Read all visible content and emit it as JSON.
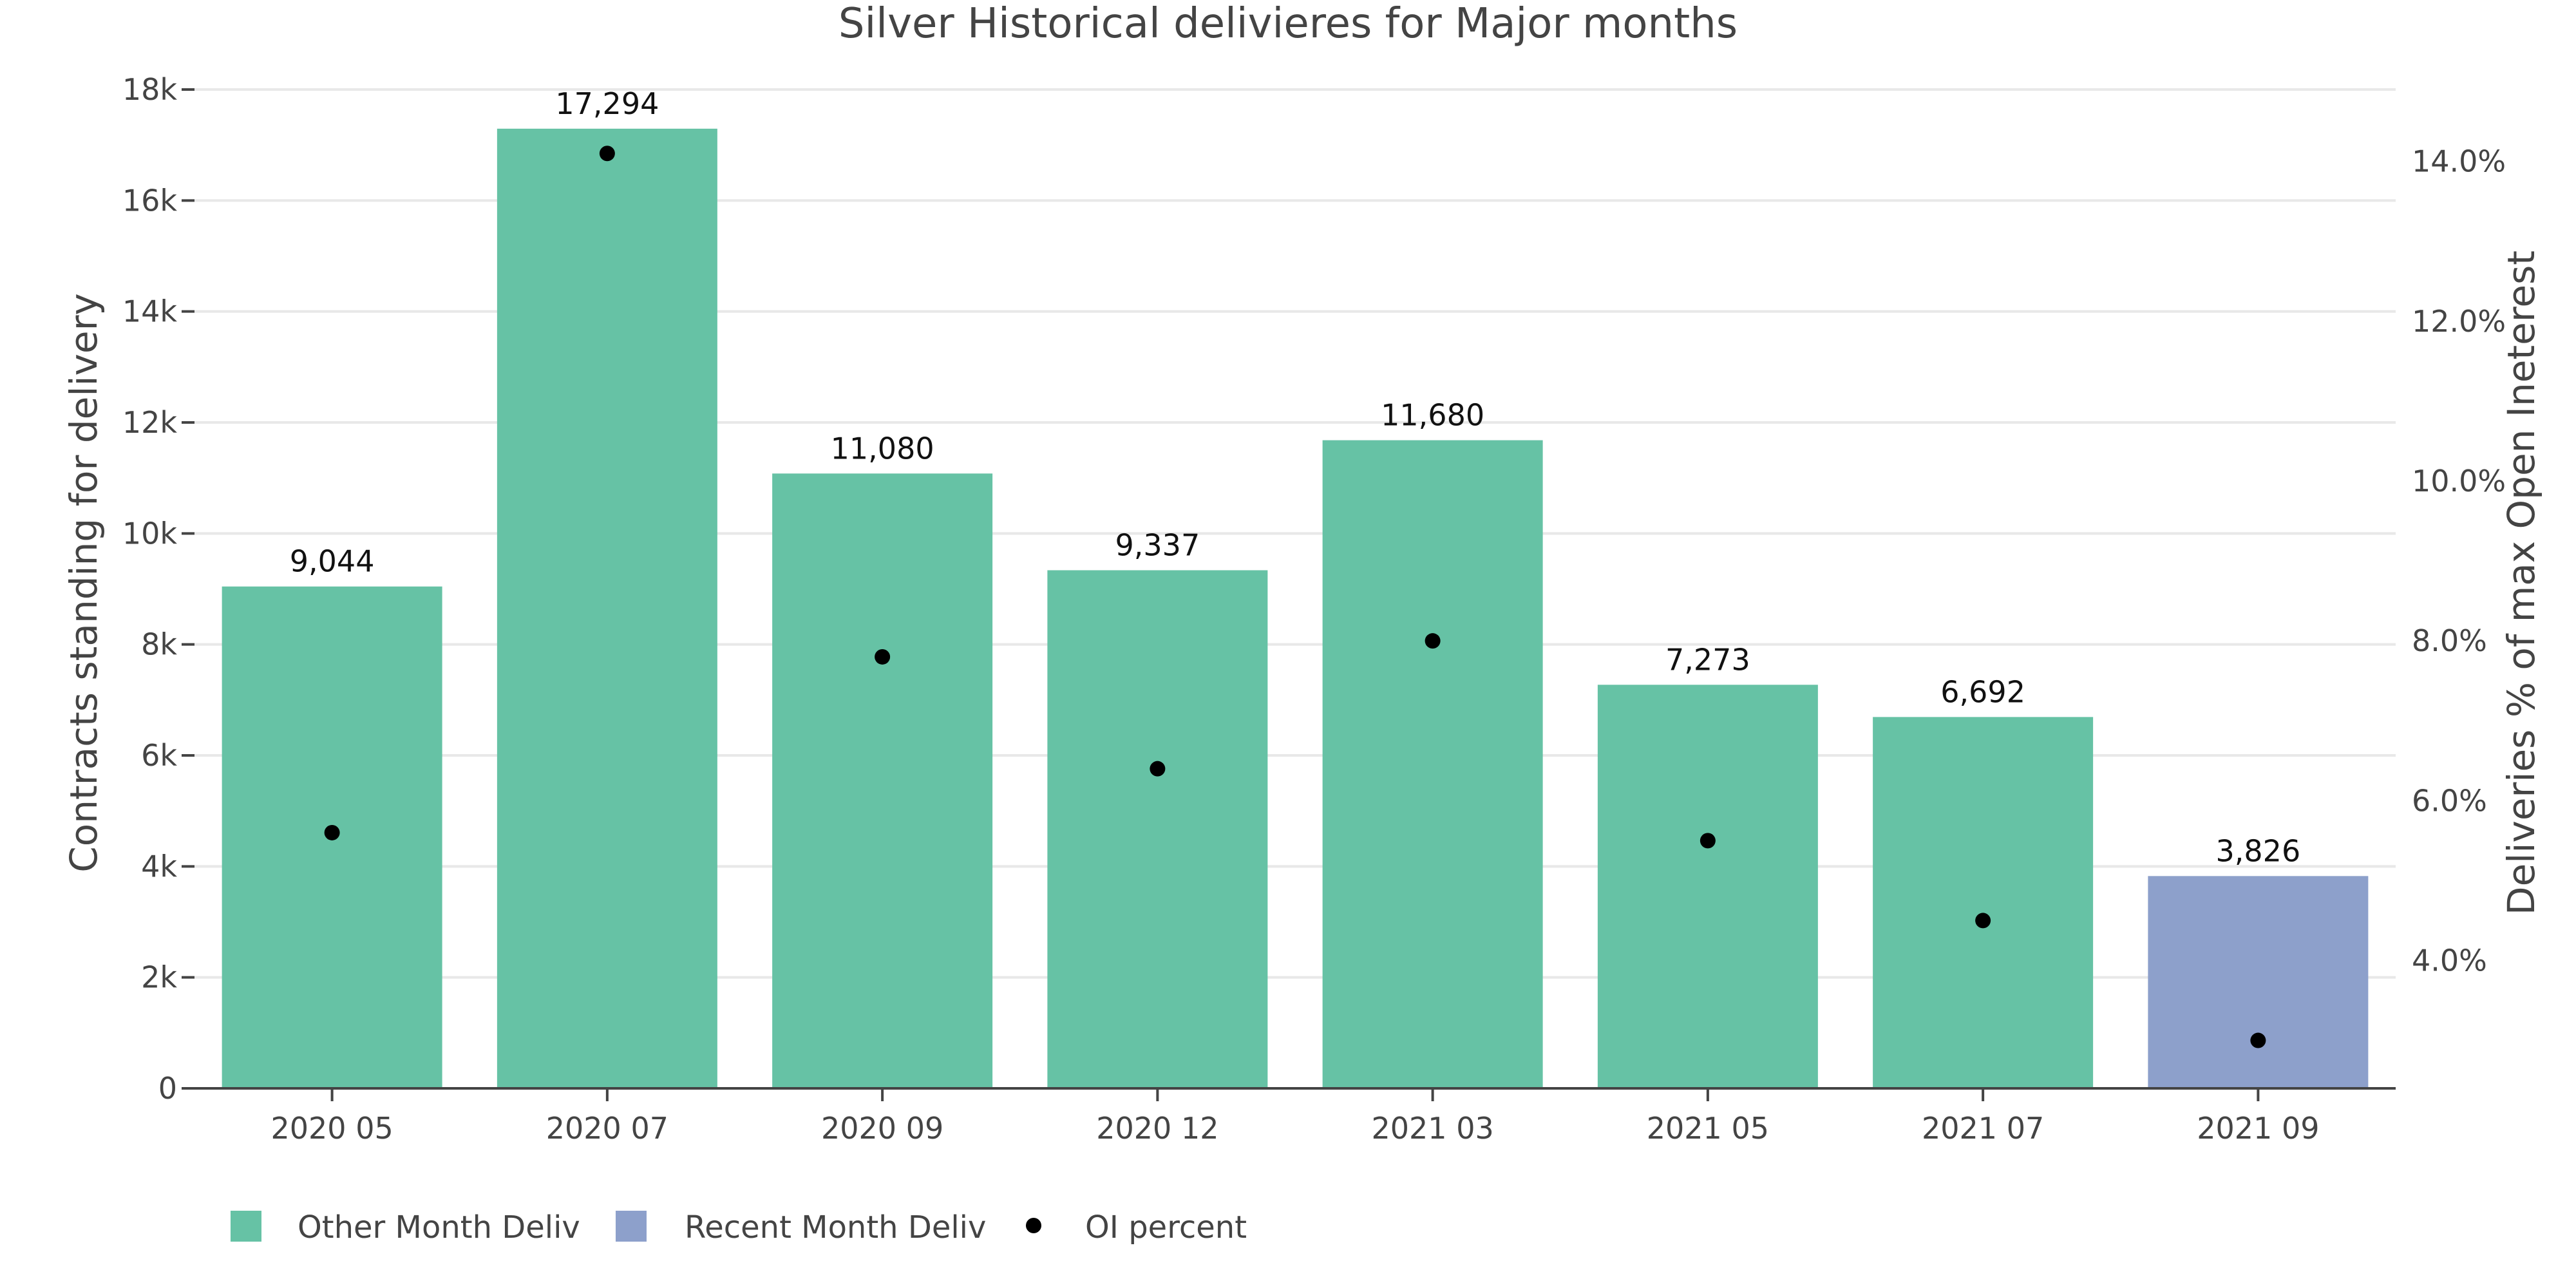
{
  "chart_data": {
    "type": "bar",
    "title": "Silver Historical delivieres for Major months",
    "categories": [
      "2020 05",
      "2020 07",
      "2020 09",
      "2020 12",
      "2021 03",
      "2021 05",
      "2021 07",
      "2021 09"
    ],
    "ylabel": "Contracts standing for delivery",
    "y2label": "Deliveries % of max Open Ineterest",
    "ylim": [
      0,
      18000
    ],
    "y2lim": [
      2.4,
      14.9
    ],
    "yticks": [
      0,
      2000,
      4000,
      6000,
      8000,
      10000,
      12000,
      14000,
      16000,
      18000
    ],
    "ytick_labels": [
      "0",
      "2k",
      "4k",
      "6k",
      "8k",
      "10k",
      "12k",
      "14k",
      "16k",
      "18k"
    ],
    "y2ticks": [
      4,
      6,
      8,
      10,
      12,
      14
    ],
    "y2tick_labels": [
      "4.0%",
      "6.0%",
      "8.0%",
      "10.0%",
      "12.0%",
      "14.0%"
    ],
    "grid": true,
    "legend_position": "bottom-left",
    "series": [
      {
        "name": "Other Month Deliv",
        "kind": "bar",
        "axis": "left",
        "color": "#66c2a5",
        "values": [
          9044,
          17294,
          11080,
          9337,
          11680,
          7273,
          6692,
          null
        ]
      },
      {
        "name": "Recent Month Deliv",
        "kind": "bar",
        "axis": "left",
        "color": "#8da0cb",
        "values": [
          null,
          null,
          null,
          null,
          null,
          null,
          null,
          3826
        ]
      },
      {
        "name": "OI percent",
        "kind": "scatter",
        "axis": "right",
        "color": "#000000",
        "values": [
          5.6,
          14.1,
          7.8,
          6.4,
          8.0,
          5.5,
          4.5,
          3.0
        ]
      }
    ],
    "data_labels": [
      "9,044",
      "17,294",
      "11,080",
      "9,337",
      "11,680",
      "7,273",
      "6,692",
      "3,826"
    ]
  }
}
